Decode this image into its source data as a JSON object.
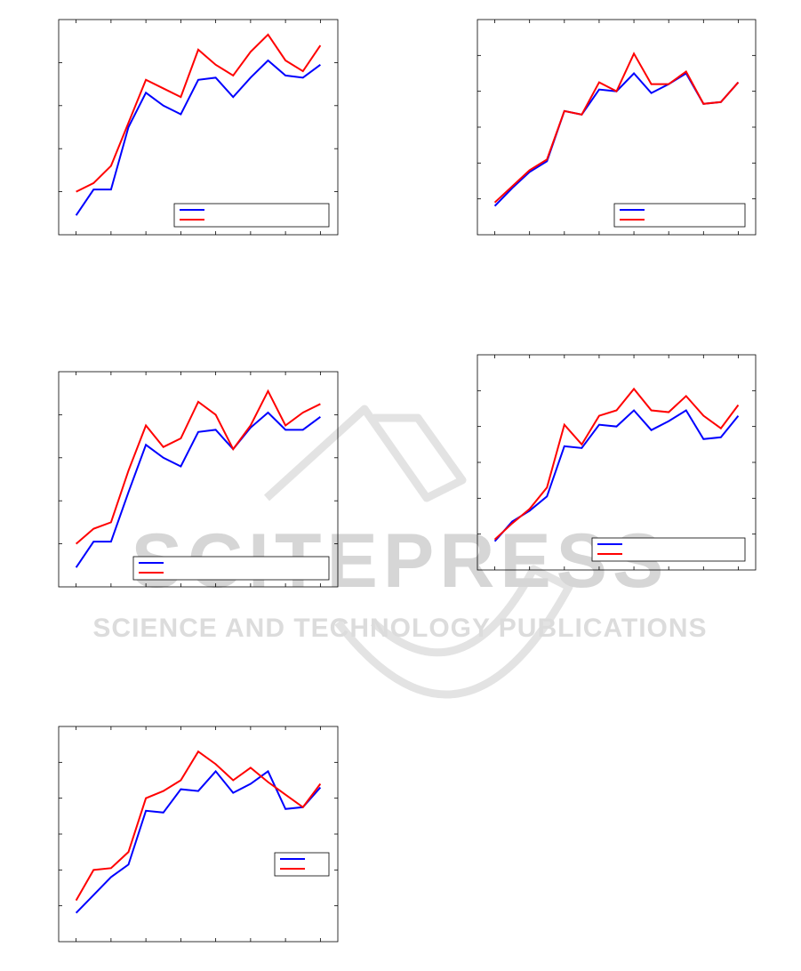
{
  "watermark": {
    "line1": "SCITEPRESS",
    "line2": "SCIENCE AND TECHNOLOGY PUBLICATIONS",
    "color": "#d9d9d9"
  },
  "colors": {
    "series_blue": "#0000ff",
    "series_red": "#ff0000",
    "axis": "#000000"
  },
  "chart_data": [
    {
      "type": "line",
      "position": "top-left",
      "x": [
        1,
        2,
        3,
        4,
        5,
        6,
        7,
        8,
        9,
        10,
        11,
        12,
        13,
        14,
        15
      ],
      "xlim": [
        0,
        16
      ],
      "ylim": [
        0,
        5
      ],
      "grid": false,
      "legend_location": "bottom-right",
      "series": [
        {
          "color": "#0000ff",
          "values": [
            0.45,
            1.05,
            1.05,
            2.5,
            3.3,
            3.0,
            2.8,
            3.6,
            3.65,
            3.2,
            3.65,
            4.05,
            3.7,
            3.65,
            3.95
          ]
        },
        {
          "color": "#ff0000",
          "values": [
            1.0,
            1.2,
            1.6,
            2.6,
            3.6,
            3.4,
            3.2,
            4.3,
            3.95,
            3.7,
            4.25,
            4.65,
            4.05,
            3.8,
            4.4
          ]
        }
      ]
    },
    {
      "type": "line",
      "position": "top-right",
      "x": [
        1,
        2,
        3,
        4,
        5,
        6,
        7,
        8,
        9,
        10,
        11,
        12,
        13,
        14,
        15
      ],
      "xlim": [
        0,
        16
      ],
      "ylim": [
        0,
        6
      ],
      "grid": false,
      "legend_location": "bottom-right",
      "series": [
        {
          "color": "#0000ff",
          "values": [
            0.8,
            1.3,
            1.75,
            2.05,
            3.45,
            3.35,
            4.05,
            4.0,
            4.5,
            3.95,
            4.2,
            4.5,
            3.65,
            3.7,
            4.25
          ]
        },
        {
          "color": "#ff0000",
          "values": [
            0.9,
            1.35,
            1.8,
            2.1,
            3.45,
            3.35,
            4.25,
            4.0,
            5.05,
            4.2,
            4.2,
            4.55,
            3.65,
            3.7,
            4.25
          ]
        }
      ]
    },
    {
      "type": "line",
      "position": "middle-left",
      "x": [
        1,
        2,
        3,
        4,
        5,
        6,
        7,
        8,
        9,
        10,
        11,
        12,
        13,
        14,
        15
      ],
      "xlim": [
        0,
        16
      ],
      "ylim": [
        0,
        5
      ],
      "grid": false,
      "legend_location": "bottom-right",
      "series": [
        {
          "color": "#0000ff",
          "values": [
            0.45,
            1.05,
            1.05,
            2.2,
            3.3,
            3.0,
            2.8,
            3.6,
            3.65,
            3.2,
            3.7,
            4.05,
            3.65,
            3.65,
            3.95
          ]
        },
        {
          "color": "#ff0000",
          "values": [
            1.0,
            1.35,
            1.5,
            2.7,
            3.75,
            3.25,
            3.45,
            4.3,
            4.0,
            3.2,
            3.75,
            4.55,
            3.75,
            4.05,
            4.25
          ]
        }
      ]
    },
    {
      "type": "line",
      "position": "middle-right",
      "x": [
        1,
        2,
        3,
        4,
        5,
        6,
        7,
        8,
        9,
        10,
        11,
        12,
        13,
        14,
        15
      ],
      "xlim": [
        0,
        16
      ],
      "ylim": [
        0,
        6
      ],
      "grid": false,
      "legend_location": "bottom-right",
      "series": [
        {
          "color": "#0000ff",
          "values": [
            0.8,
            1.35,
            1.65,
            2.05,
            3.45,
            3.4,
            4.05,
            4.0,
            4.45,
            3.9,
            4.15,
            4.45,
            3.65,
            3.7,
            4.3
          ]
        },
        {
          "color": "#ff0000",
          "values": [
            0.85,
            1.3,
            1.7,
            2.3,
            4.05,
            3.5,
            4.3,
            4.45,
            5.05,
            4.45,
            4.4,
            4.85,
            4.3,
            3.95,
            4.6
          ]
        }
      ]
    },
    {
      "type": "line",
      "position": "bottom-left",
      "x": [
        1,
        2,
        3,
        4,
        5,
        6,
        7,
        8,
        9,
        10,
        11,
        12,
        13,
        14,
        15
      ],
      "xlim": [
        0,
        16
      ],
      "ylim": [
        0,
        6
      ],
      "grid": false,
      "legend_location": "right",
      "series": [
        {
          "color": "#0000ff",
          "values": [
            0.8,
            1.3,
            1.8,
            2.15,
            3.65,
            3.6,
            4.25,
            4.2,
            4.75,
            4.15,
            4.4,
            4.75,
            3.7,
            3.75,
            4.3
          ]
        },
        {
          "color": "#ff0000",
          "values": [
            1.15,
            2.0,
            2.05,
            2.5,
            4.0,
            4.2,
            4.5,
            5.3,
            4.95,
            4.5,
            4.85,
            4.45,
            4.1,
            3.75,
            4.4
          ]
        }
      ]
    }
  ]
}
